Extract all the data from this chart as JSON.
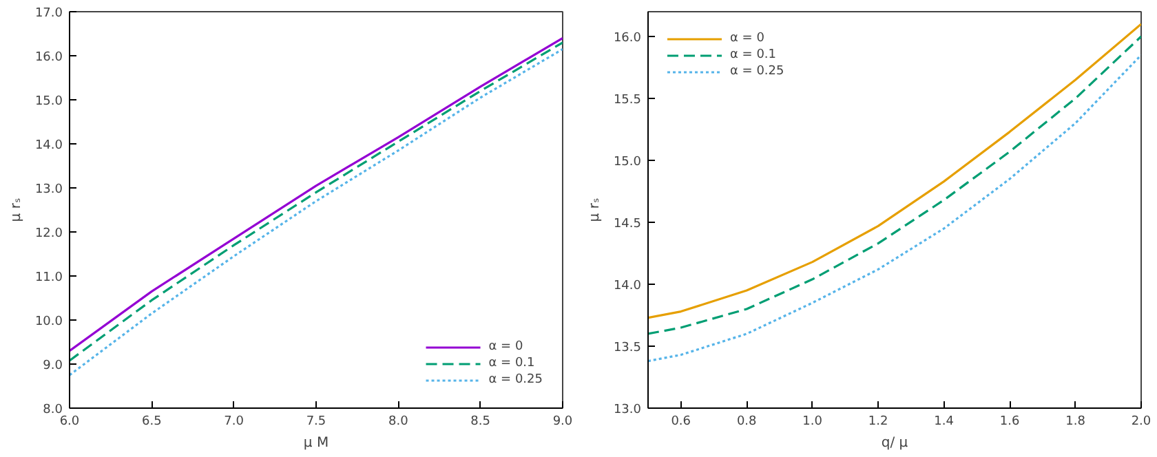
{
  "chart_data": [
    {
      "type": "line",
      "xlabel": "μ M",
      "ylabel": "μ rₛ",
      "x": [
        6.0,
        6.5,
        7.0,
        7.5,
        8.0,
        8.5,
        9.0
      ],
      "xlim": [
        6.0,
        9.0
      ],
      "ylim": [
        8.0,
        17.0
      ],
      "xticks": [
        {
          "value": 6,
          "label": "6.0"
        },
        {
          "value": 6.5,
          "label": "6.5"
        },
        {
          "value": 7,
          "label": "7.0"
        },
        {
          "value": 7.5,
          "label": "7.5"
        },
        {
          "value": 8,
          "label": "8.0"
        },
        {
          "value": 8.5,
          "label": "8.5"
        },
        {
          "value": 9,
          "label": "9.0"
        }
      ],
      "yticks": [
        {
          "value": 8,
          "label": "8.0"
        },
        {
          "value": 9,
          "label": "9.0"
        },
        {
          "value": 10,
          "label": "10.0"
        },
        {
          "value": 11,
          "label": "11.0"
        },
        {
          "value": 12,
          "label": "12.0"
        },
        {
          "value": 13,
          "label": "13.0"
        },
        {
          "value": 14,
          "label": "14.0"
        },
        {
          "value": 15,
          "label": "15.0"
        },
        {
          "value": 16,
          "label": "16.0"
        },
        {
          "value": 17,
          "label": "17.0"
        }
      ],
      "grid": false,
      "legend": "bottom right",
      "series": [
        {
          "name": "α = 0",
          "color": "#9400d3",
          "line_style": "solid",
          "values": [
            9.3,
            10.65,
            11.85,
            13.05,
            14.15,
            15.3,
            16.4
          ]
        },
        {
          "name": "α = 0.1",
          "color": "#009e73",
          "line_style": "dashed",
          "values": [
            9.08,
            10.45,
            11.7,
            12.9,
            14.05,
            15.2,
            16.3
          ]
        },
        {
          "name": "α = 0.25",
          "color": "#56b4e9",
          "line_style": "dotted",
          "values": [
            8.75,
            10.15,
            11.45,
            12.7,
            13.85,
            15.05,
            16.15
          ]
        }
      ]
    },
    {
      "type": "line",
      "xlabel": "q/ μ",
      "ylabel": "μ rₛ",
      "x": [
        0.5,
        0.6,
        0.8,
        1.0,
        1.2,
        1.4,
        1.6,
        1.8,
        2.0
      ],
      "xlim": [
        0.5,
        2.0
      ],
      "ylim": [
        13.0,
        16.2
      ],
      "xticks": [
        {
          "value": 0.6,
          "label": "0.6"
        },
        {
          "value": 0.8,
          "label": "0.8"
        },
        {
          "value": 1.0,
          "label": "1.0"
        },
        {
          "value": 1.2,
          "label": "1.2"
        },
        {
          "value": 1.4,
          "label": "1.4"
        },
        {
          "value": 1.6,
          "label": "1.6"
        },
        {
          "value": 1.8,
          "label": "1.8"
        },
        {
          "value": 2.0,
          "label": "2.0"
        }
      ],
      "yticks": [
        {
          "value": 13,
          "label": "13.0"
        },
        {
          "value": 13.5,
          "label": "13.5"
        },
        {
          "value": 14,
          "label": "14.0"
        },
        {
          "value": 14.5,
          "label": "14.5"
        },
        {
          "value": 15,
          "label": "15.0"
        },
        {
          "value": 15.5,
          "label": "15.5"
        },
        {
          "value": 16,
          "label": "16.0"
        }
      ],
      "grid": false,
      "legend": "top left",
      "series": [
        {
          "name": "α = 0",
          "color": "#e69f00",
          "line_style": "solid",
          "values": [
            13.73,
            13.78,
            13.95,
            14.18,
            14.47,
            14.83,
            15.23,
            15.65,
            16.1
          ]
        },
        {
          "name": "α = 0.1",
          "color": "#009e73",
          "line_style": "dashed",
          "values": [
            13.6,
            13.65,
            13.8,
            14.04,
            14.33,
            14.68,
            15.07,
            15.5,
            16.0
          ]
        },
        {
          "name": "α = 0.25",
          "color": "#56b4e9",
          "line_style": "dotted",
          "values": [
            13.38,
            13.43,
            13.6,
            13.85,
            14.12,
            14.45,
            14.85,
            15.3,
            15.85
          ]
        }
      ]
    }
  ]
}
